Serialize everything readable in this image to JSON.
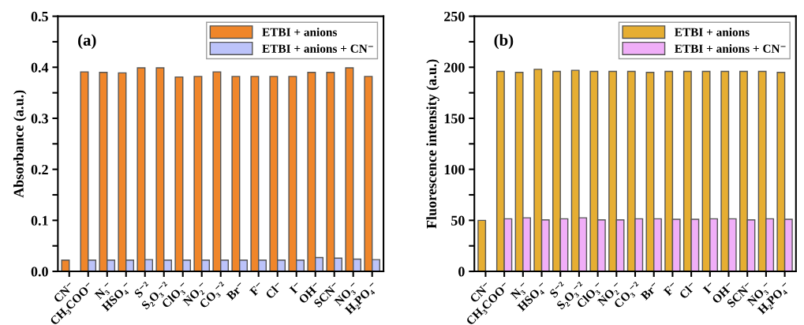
{
  "chart_data": [
    {
      "type": "bar",
      "ylabel": "Absorbance (a.u.)",
      "annotations": [
        "(a)"
      ],
      "categories": [
        "CN⁻",
        "CH₃COO⁻",
        "N₃⁻",
        "HSO₄⁻",
        "S⁻²",
        "S₂O₃⁻²",
        "ClO₃⁻",
        "NO₂⁻",
        "CO₃⁻²",
        "Br⁻",
        "F⁻",
        "Cl⁻",
        "I⁻",
        "OH⁻",
        "SCN⁻",
        "NO₃⁻",
        "H₂PO₄⁻"
      ],
      "series": [
        {
          "name": "ETBI + anions",
          "color": "#f0862a",
          "values": [
            0.022,
            0.391,
            0.39,
            0.389,
            0.399,
            0.399,
            0.381,
            0.382,
            0.391,
            0.382,
            0.382,
            0.382,
            0.382,
            0.39,
            0.39,
            0.399,
            0.382
          ]
        },
        {
          "name": "ETBI + anions + CN⁻",
          "color": "#bcc3fa",
          "values": [
            null,
            0.022,
            0.022,
            0.022,
            0.023,
            0.022,
            0.022,
            0.022,
            0.022,
            0.022,
            0.022,
            0.022,
            0.022,
            0.027,
            0.026,
            0.024,
            0.023
          ]
        }
      ],
      "ylim": [
        0,
        0.5
      ],
      "yticks": [
        {
          "value": 0,
          "label": "0.0"
        },
        {
          "value": 0.05,
          "label": null
        },
        0.1,
        {
          "value": 0.15,
          "label": null
        },
        0.2,
        {
          "value": 0.25,
          "label": null
        },
        0.3,
        {
          "value": 0.35,
          "label": null
        },
        0.4,
        {
          "value": 0.45,
          "label": null
        },
        0.5
      ],
      "legend": "top right",
      "grid": false
    },
    {
      "type": "bar",
      "ylabel": "Fluorescence intensity (a.u.)",
      "annotations": [
        "(b)"
      ],
      "categories": [
        "CN⁻",
        "CH₃COO⁻",
        "N₃⁻",
        "HSO₄⁻",
        "S⁻²",
        "S₂O₃⁻²",
        "ClO₃⁻",
        "NO₂⁻",
        "CO₃⁻²",
        "Br⁻",
        "F⁻",
        "Cl⁻",
        "I⁻",
        "OH⁻",
        "SCN⁻",
        "NO₃⁻",
        "H₂PO₄⁻"
      ],
      "series": [
        {
          "name": "ETBI + anions",
          "color": "#e6ae32",
          "values": [
            50,
            196,
            195,
            198,
            196,
            197,
            196,
            196,
            196,
            195,
            196,
            196,
            196,
            196,
            196,
            196,
            195
          ]
        },
        {
          "name": "ETBI + anions + CN⁻",
          "color": "#f0aef8",
          "values": [
            null,
            51.5,
            52.5,
            50.5,
            51.5,
            52.5,
            50.5,
            50.5,
            51.5,
            51.5,
            51,
            51,
            51.5,
            51.5,
            50.5,
            51.5,
            51
          ]
        }
      ],
      "ylim": [
        0,
        250
      ],
      "yticks": [
        0,
        {
          "value": 25,
          "label": null
        },
        50,
        {
          "value": 75,
          "label": null
        },
        100,
        {
          "value": 125,
          "label": null
        },
        150,
        {
          "value": 175,
          "label": null
        },
        200,
        {
          "value": 225,
          "label": null
        },
        250
      ],
      "legend": "top right",
      "grid": false
    }
  ]
}
